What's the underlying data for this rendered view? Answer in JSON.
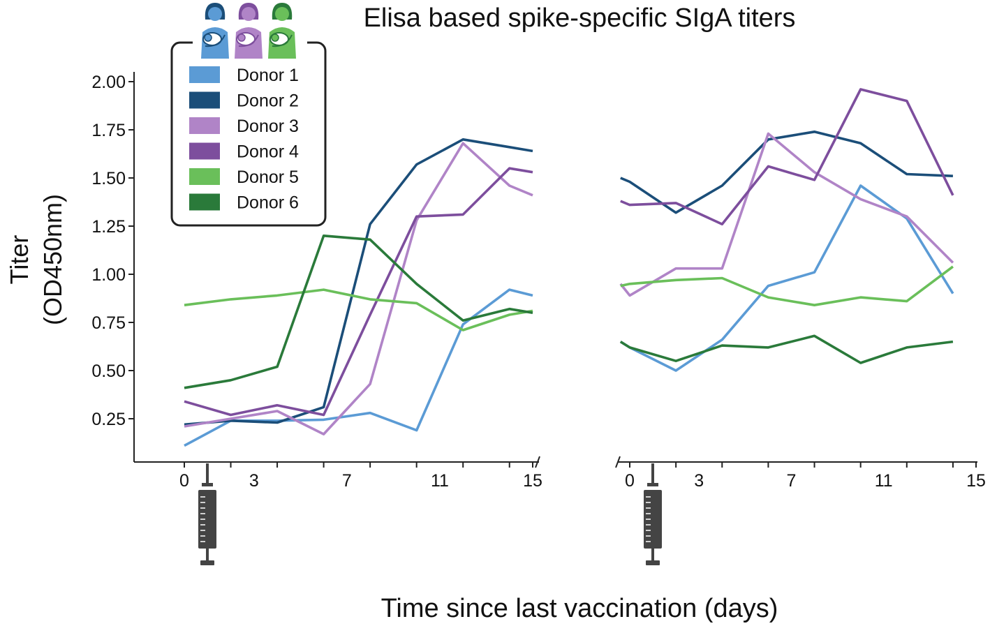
{
  "chart_data": {
    "type": "line",
    "title": "Elisa based spike-specific SIgA titers",
    "ylabel_line1": "Titer",
    "ylabel_line2": "(OD450nm)",
    "xlabel": "Time since last vaccination (days)",
    "ylim": [
      0.0,
      2.05
    ],
    "yticks": [
      "0.25",
      "0.50",
      "0.75",
      "1.00",
      "1.25",
      "1.50",
      "1.75",
      "2.00"
    ],
    "xticks": [
      "0",
      "3",
      "7",
      "11",
      "15"
    ],
    "xlim": [
      -2,
      15.2
    ],
    "grid": false,
    "legend_position": "top-left",
    "legend_icon": "three-mothers-with-babies-icon",
    "vaccination_marker": "syringe-icon",
    "panels": [
      {
        "x": [
          0,
          2,
          4,
          6,
          8,
          10,
          12,
          14,
          15
        ],
        "series": [
          {
            "name": "Donor 1",
            "color": "#5b9bd5",
            "values": [
              0.11,
              0.24,
              0.24,
              0.245,
              0.28,
              0.19,
              0.74,
              0.92,
              0.89
            ]
          },
          {
            "name": "Donor 2",
            "color": "#1b4e79",
            "values": [
              0.22,
              0.24,
              0.23,
              0.31,
              1.26,
              1.57,
              1.7,
              1.66,
              1.64
            ]
          },
          {
            "name": "Donor 3",
            "color": "#b084c7",
            "values": [
              0.21,
              0.25,
              0.29,
              0.17,
              0.43,
              1.28,
              1.68,
              1.46,
              1.41
            ]
          },
          {
            "name": "Donor 4",
            "color": "#7d4e9d",
            "values": [
              0.34,
              0.27,
              0.32,
              0.27,
              0.79,
              1.3,
              1.31,
              1.55,
              1.53
            ]
          },
          {
            "name": "Donor 5",
            "color": "#6abf5a",
            "values": [
              0.84,
              0.87,
              0.89,
              0.92,
              0.87,
              0.85,
              0.71,
              0.79,
              0.81
            ]
          },
          {
            "name": "Donor 6",
            "color": "#2a7a3a",
            "values": [
              0.41,
              0.45,
              0.52,
              1.2,
              1.18,
              0.95,
              0.76,
              0.82,
              0.8
            ]
          }
        ]
      },
      {
        "x": [
          -0.4,
          0,
          2,
          4,
          6,
          8,
          10,
          12,
          14
        ],
        "series": [
          {
            "name": "Donor 1",
            "color": "#5b9bd5",
            "values": [
              0.65,
              0.62,
              0.5,
              0.66,
              0.94,
              1.01,
              1.46,
              1.29,
              0.9
            ]
          },
          {
            "name": "Donor 2",
            "color": "#1b4e79",
            "values": [
              1.5,
              1.48,
              1.32,
              1.46,
              1.7,
              1.74,
              1.68,
              1.52,
              1.51
            ]
          },
          {
            "name": "Donor 3",
            "color": "#b084c7",
            "values": [
              0.95,
              0.89,
              1.03,
              1.03,
              1.73,
              1.53,
              1.39,
              1.3,
              1.06
            ]
          },
          {
            "name": "Donor 4",
            "color": "#7d4e9d",
            "values": [
              1.38,
              1.36,
              1.37,
              1.26,
              1.56,
              1.49,
              1.96,
              1.9,
              1.41
            ]
          },
          {
            "name": "Donor 5",
            "color": "#6abf5a",
            "values": [
              0.94,
              0.95,
              0.97,
              0.98,
              0.88,
              0.84,
              0.88,
              0.86,
              1.04
            ]
          },
          {
            "name": "Donor 6",
            "color": "#2a7a3a",
            "values": [
              0.65,
              0.62,
              0.55,
              0.63,
              0.62,
              0.68,
              0.54,
              0.62,
              0.65
            ]
          }
        ]
      }
    ]
  }
}
